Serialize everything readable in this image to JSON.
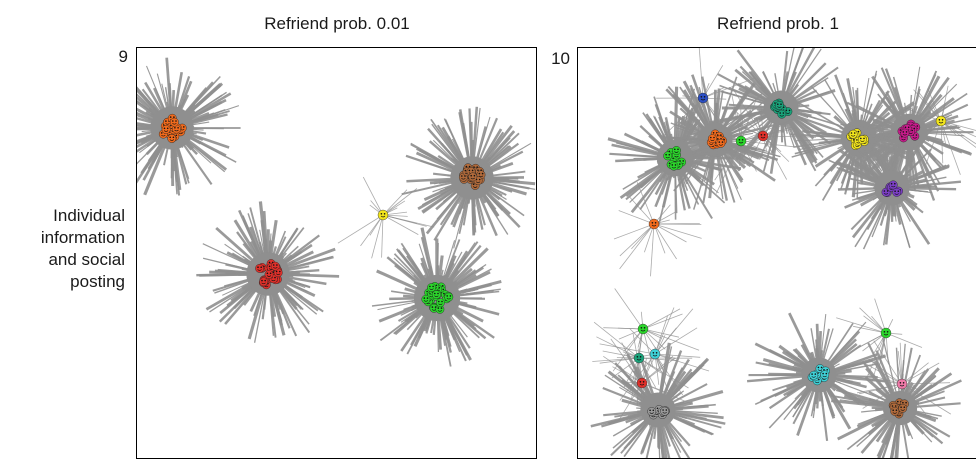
{
  "columns": [
    {
      "title": "Refriend prob. 0.01"
    },
    {
      "title": "Refriend prob. 1"
    }
  ],
  "row_label": [
    "Individual",
    "information",
    "and social",
    "posting"
  ],
  "panels": [
    {
      "number": "9",
      "clusters": [
        {
          "color": "#f26b1d",
          "group_size": 22
        },
        {
          "color": "#b06a3b",
          "group_size": 22
        },
        {
          "color": "#f2e51d",
          "group_size": 1
        },
        {
          "color": "#e0302a",
          "group_size": 22
        },
        {
          "color": "#2bd62b",
          "group_size": 26
        }
      ]
    },
    {
      "number": "10",
      "clusters": [
        {
          "color": "#2b4fc4",
          "group_size": 1
        },
        {
          "color": "#1aa27a",
          "group_size": 10
        },
        {
          "color": "#f26b1d",
          "group_size": 10
        },
        {
          "color": "#2bd62b",
          "group_size": 12
        },
        {
          "color": "#2bd62b",
          "group_size": 1
        },
        {
          "color": "#e0302a",
          "group_size": 1
        },
        {
          "color": "#f2e51d",
          "group_size": 12
        },
        {
          "color": "#c81b8c",
          "group_size": 12
        },
        {
          "color": "#f2e51d",
          "group_size": 1
        },
        {
          "color": "#7b3fc4",
          "group_size": 10
        },
        {
          "color": "#f26b1d",
          "group_size": 1
        },
        {
          "color": "#2bd62b",
          "group_size": 1
        },
        {
          "color": "#1aa27a",
          "group_size": 1
        },
        {
          "color": "#3fd0d6",
          "group_size": 1
        },
        {
          "color": "#e0302a",
          "group_size": 1
        },
        {
          "color": "#999999",
          "group_size": 10
        },
        {
          "color": "#3fd0d6",
          "group_size": 10
        },
        {
          "color": "#2bd62b",
          "group_size": 1
        },
        {
          "color": "#f07aa8",
          "group_size": 1
        },
        {
          "color": "#b06a3b",
          "group_size": 9
        }
      ]
    }
  ]
}
